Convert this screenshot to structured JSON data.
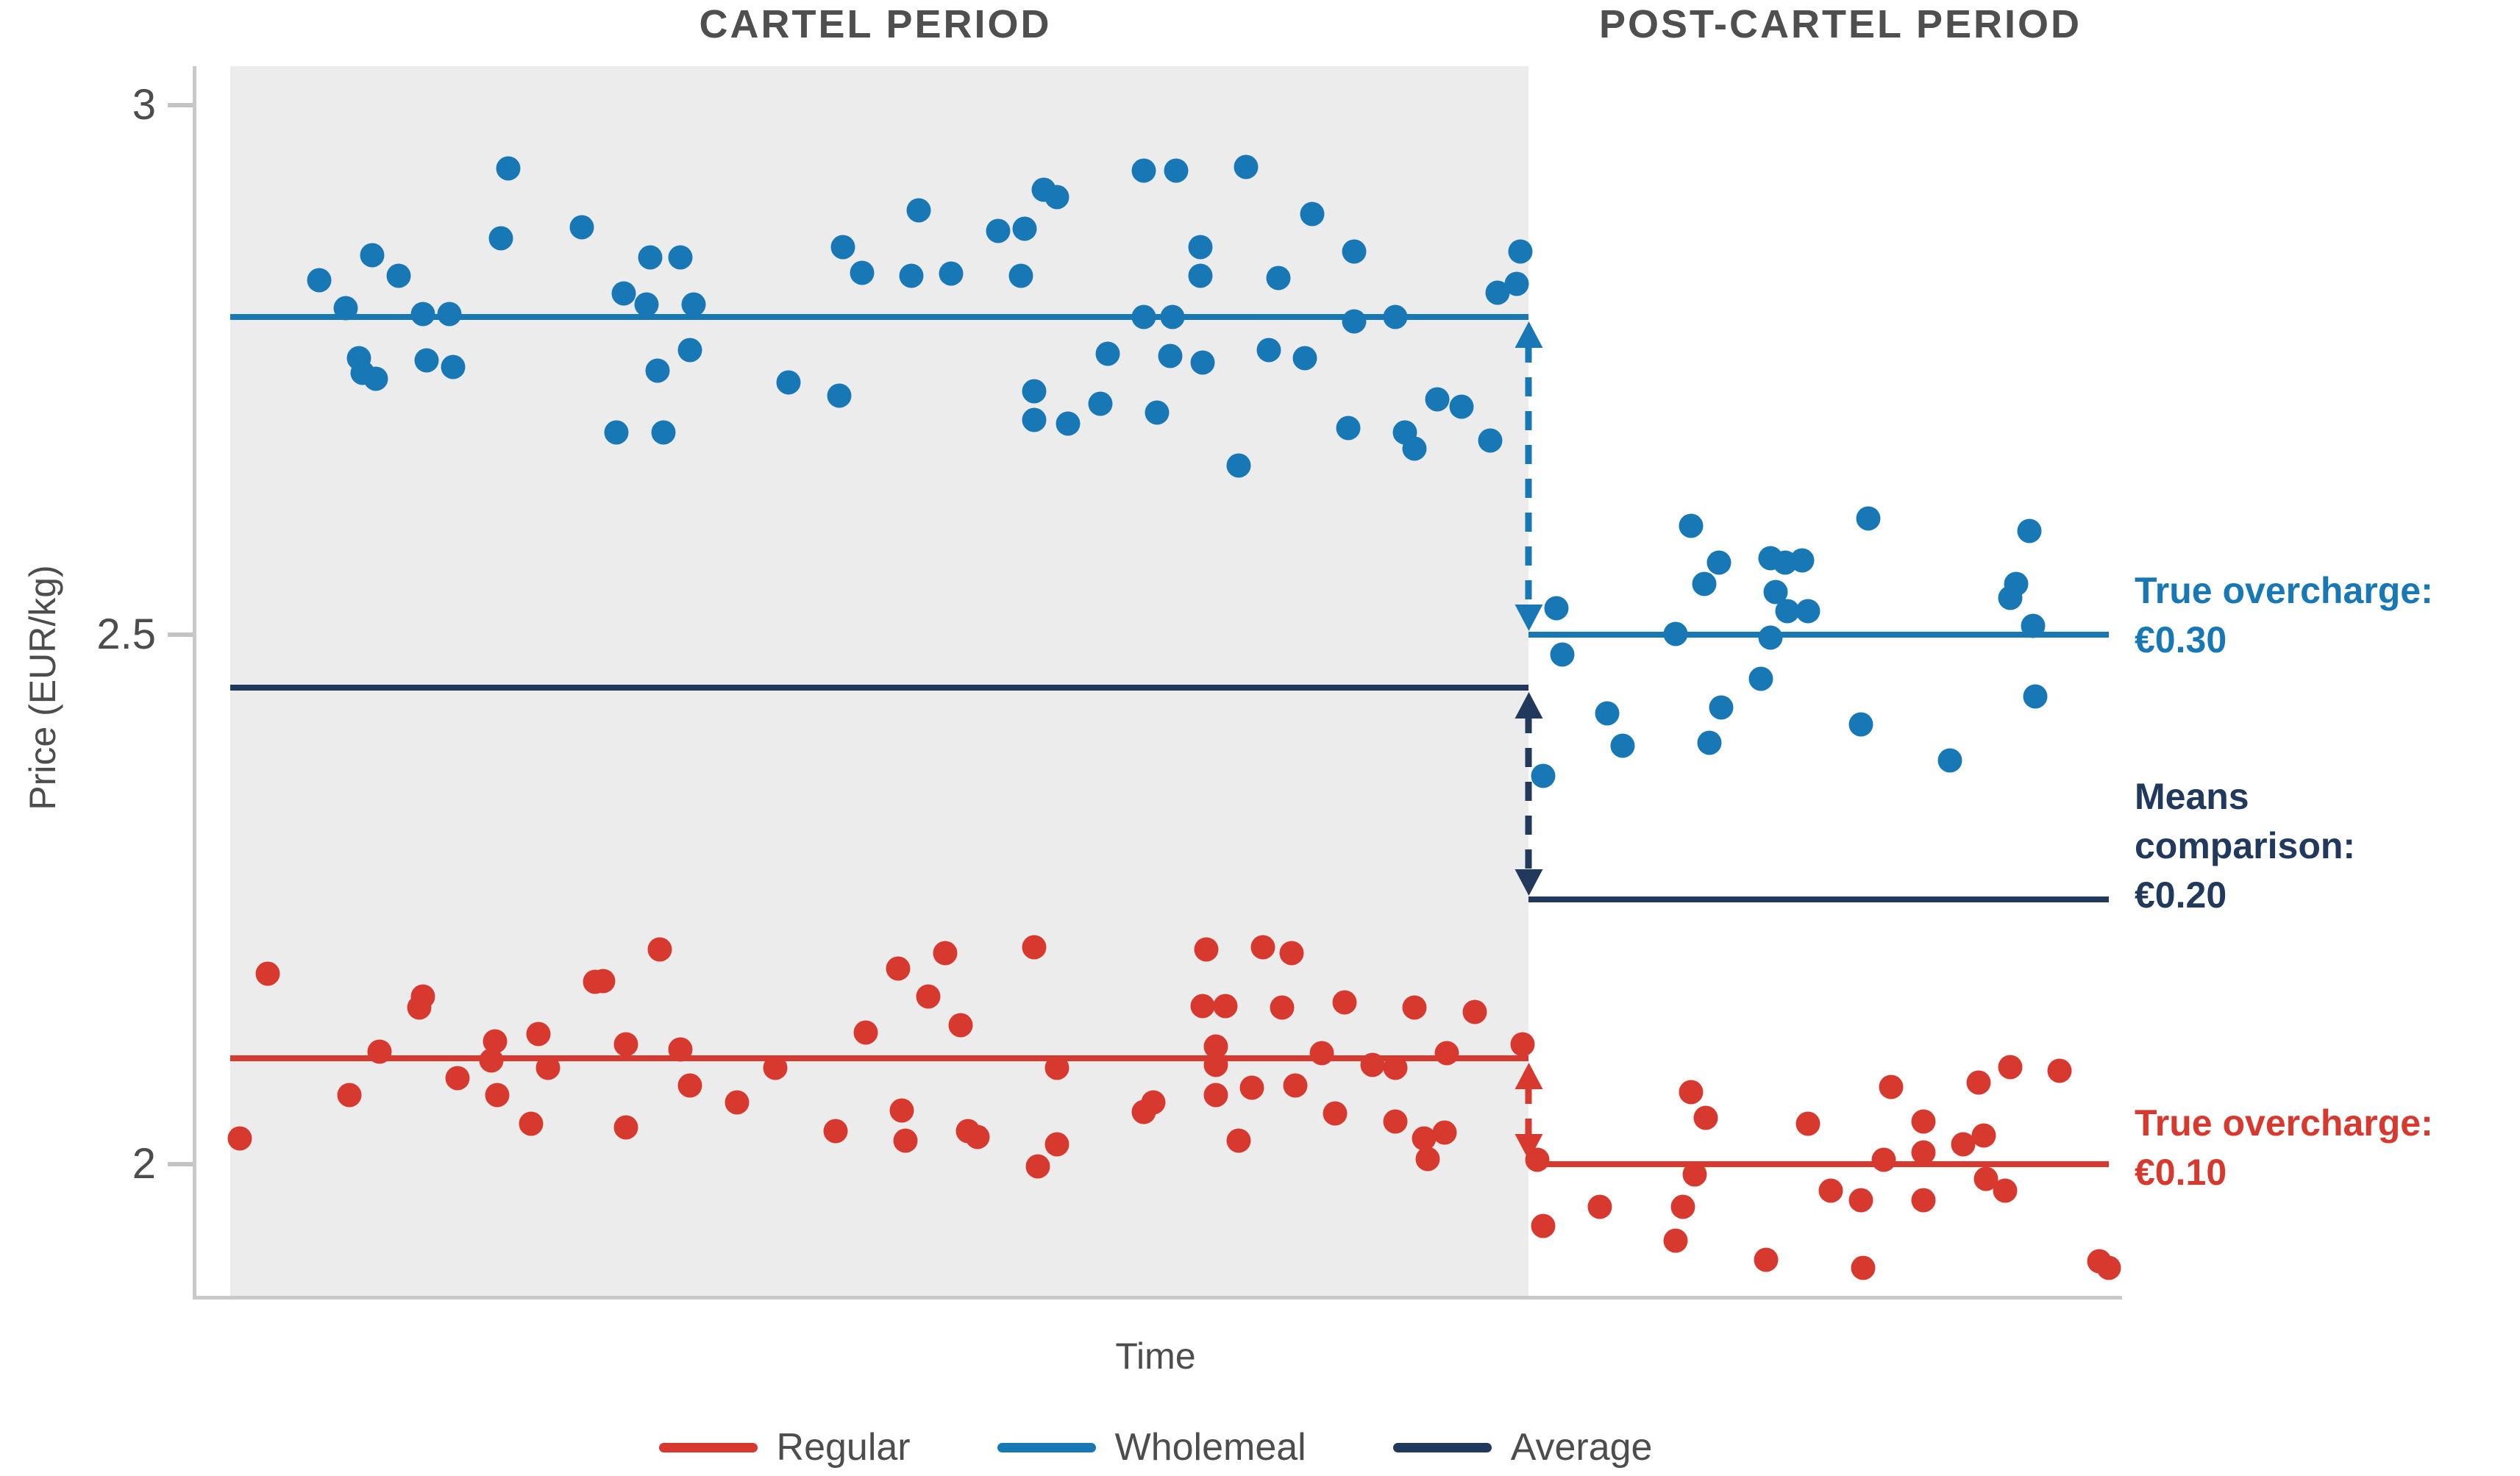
{
  "titles": {
    "cartel": "CARTEL PERIOD",
    "post": "POST-CARTEL PERIOD"
  },
  "axes": {
    "y_label": "Price (EUR/kg)",
    "x_label": "Time"
  },
  "annotations": {
    "wholemeal": {
      "line1": "True overcharge:",
      "line2": "€0.30"
    },
    "average": {
      "line1": "Means",
      "line2": "comparison:",
      "line3": "€0.20"
    },
    "regular": {
      "line1": "True overcharge:",
      "line2": "€0.10"
    }
  },
  "legend": [
    {
      "label": "Regular",
      "color": "#d8392f"
    },
    {
      "label": "Wholemeal",
      "color": "#1878b6"
    },
    {
      "label": "Average",
      "color": "#21395c"
    }
  ],
  "colors": {
    "wholemeal": "#1878b6",
    "regular": "#d8392f",
    "average": "#21395c",
    "annotation_blue": "#1778b5",
    "shade": "#ececec"
  },
  "chart_data": {
    "type": "scatter",
    "title": "Cartel vs post-cartel bread prices",
    "xlabel": "Time",
    "ylabel": "Price (EUR/kg)",
    "x_axis": {
      "unit": "percent of timeline",
      "range": [
        0,
        100
      ]
    },
    "y_axis": {
      "range": [
        1.876,
        3.037
      ],
      "ticks": [
        3,
        2.5,
        2
      ]
    },
    "grid": false,
    "legend_position": "bottom",
    "cartel_boundary_x": 68.63,
    "shaded_region": "cartel period (x 0 to 68.63)",
    "means": {
      "wholemeal": {
        "cartel": 2.8,
        "post": 2.5
      },
      "average": {
        "cartel": 2.45,
        "post": 2.25
      },
      "regular": {
        "cartel": 2.1,
        "post": 2.0
      }
    },
    "overcharges": {
      "wholemeal_true_overcharge_eur": 0.3,
      "means_comparison_eur": 0.2,
      "regular_true_overcharge_eur": 0.1
    },
    "series": [
      {
        "name": "Wholemeal",
        "color": "#1878b6",
        "points": [
          [
            14.7,
            2.94
          ],
          [
            18.6,
            2.885
          ],
          [
            14.3,
            2.874
          ],
          [
            7.5,
            2.858
          ],
          [
            8.9,
            2.839
          ],
          [
            4.7,
            2.835
          ],
          [
            22.2,
            2.856
          ],
          [
            23.8,
            2.856
          ],
          [
            20.8,
            2.822
          ],
          [
            22.0,
            2.812
          ],
          [
            24.5,
            2.812
          ],
          [
            6.1,
            2.808
          ],
          [
            10.2,
            2.803
          ],
          [
            11.6,
            2.803
          ],
          [
            32.4,
            2.866
          ],
          [
            33.4,
            2.842
          ],
          [
            6.8,
            2.761
          ],
          [
            7.0,
            2.747
          ],
          [
            7.7,
            2.742
          ],
          [
            10.4,
            2.759
          ],
          [
            11.8,
            2.753
          ],
          [
            24.3,
            2.769
          ],
          [
            22.6,
            2.749
          ],
          [
            29.5,
            2.738
          ],
          [
            32.2,
            2.726
          ],
          [
            20.4,
            2.691
          ],
          [
            22.9,
            2.691
          ],
          [
            36.4,
            2.901
          ],
          [
            43.0,
            2.92
          ],
          [
            43.7,
            2.913
          ],
          [
            40.6,
            2.881
          ],
          [
            42.0,
            2.883
          ],
          [
            48.3,
            2.938
          ],
          [
            50.0,
            2.938
          ],
          [
            53.7,
            2.942
          ],
          [
            36.0,
            2.839
          ],
          [
            38.1,
            2.841
          ],
          [
            41.8,
            2.839
          ],
          [
            51.3,
            2.866
          ],
          [
            51.3,
            2.839
          ],
          [
            55.4,
            2.837
          ],
          [
            57.2,
            2.897
          ],
          [
            59.4,
            2.862
          ],
          [
            68.2,
            2.862
          ],
          [
            68.0,
            2.831
          ],
          [
            67.0,
            2.823
          ],
          [
            48.3,
            2.8
          ],
          [
            49.8,
            2.8
          ],
          [
            59.4,
            2.796
          ],
          [
            61.6,
            2.8
          ],
          [
            46.4,
            2.765
          ],
          [
            49.7,
            2.763
          ],
          [
            51.4,
            2.757
          ],
          [
            54.9,
            2.769
          ],
          [
            56.8,
            2.761
          ],
          [
            42.5,
            2.73
          ],
          [
            46.0,
            2.718
          ],
          [
            49.0,
            2.71
          ],
          [
            42.5,
            2.703
          ],
          [
            44.3,
            2.699
          ],
          [
            59.1,
            2.695
          ],
          [
            63.8,
            2.722
          ],
          [
            65.1,
            2.715
          ],
          [
            62.1,
            2.691
          ],
          [
            62.6,
            2.676
          ],
          [
            66.6,
            2.683
          ],
          [
            53.3,
            2.66
          ],
          [
            77.2,
            2.603
          ],
          [
            86.6,
            2.61
          ],
          [
            95.1,
            2.598
          ],
          [
            78.7,
            2.568
          ],
          [
            81.4,
            2.572
          ],
          [
            82.2,
            2.568
          ],
          [
            83.1,
            2.57
          ],
          [
            77.9,
            2.548
          ],
          [
            81.7,
            2.54
          ],
          [
            94.4,
            2.548
          ],
          [
            94.1,
            2.535
          ],
          [
            70.1,
            2.525
          ],
          [
            82.3,
            2.522
          ],
          [
            83.4,
            2.522
          ],
          [
            76.4,
            2.501
          ],
          [
            81.4,
            2.497
          ],
          [
            95.3,
            2.508
          ],
          [
            70.4,
            2.481
          ],
          [
            80.9,
            2.458
          ],
          [
            72.8,
            2.426
          ],
          [
            78.8,
            2.431
          ],
          [
            95.4,
            2.442
          ],
          [
            86.2,
            2.415
          ],
          [
            73.6,
            2.395
          ],
          [
            78.2,
            2.398
          ],
          [
            90.9,
            2.381
          ],
          [
            69.4,
            2.367
          ]
        ]
      },
      {
        "name": "Regular",
        "color": "#d8392f",
        "points": [
          [
            2.0,
            2.18
          ],
          [
            10.2,
            2.158
          ],
          [
            10.0,
            2.148
          ],
          [
            19.3,
            2.172
          ],
          [
            19.7,
            2.173
          ],
          [
            22.7,
            2.203
          ],
          [
            7.9,
            2.106
          ],
          [
            14.0,
            2.116
          ],
          [
            13.8,
            2.098
          ],
          [
            16.3,
            2.123
          ],
          [
            16.8,
            2.091
          ],
          [
            20.9,
            2.113
          ],
          [
            23.8,
            2.108
          ],
          [
            33.6,
            2.124
          ],
          [
            12.0,
            2.081
          ],
          [
            14.1,
            2.065
          ],
          [
            28.8,
            2.091
          ],
          [
            6.3,
            2.065
          ],
          [
            24.3,
            2.074
          ],
          [
            26.8,
            2.058
          ],
          [
            15.9,
            2.038
          ],
          [
            20.9,
            2.035
          ],
          [
            0.5,
            2.024
          ],
          [
            32.0,
            2.031
          ],
          [
            35.3,
            2.185
          ],
          [
            37.8,
            2.199
          ],
          [
            42.5,
            2.205
          ],
          [
            36.9,
            2.158
          ],
          [
            38.6,
            2.131
          ],
          [
            51.6,
            2.203
          ],
          [
            54.6,
            2.205
          ],
          [
            56.1,
            2.199
          ],
          [
            51.4,
            2.149
          ],
          [
            52.6,
            2.149
          ],
          [
            55.6,
            2.148
          ],
          [
            58.9,
            2.153
          ],
          [
            62.6,
            2.148
          ],
          [
            65.8,
            2.144
          ],
          [
            52.1,
            2.111
          ],
          [
            52.1,
            2.094
          ],
          [
            57.7,
            2.105
          ],
          [
            60.4,
            2.094
          ],
          [
            61.6,
            2.091
          ],
          [
            64.3,
            2.105
          ],
          [
            43.7,
            2.091
          ],
          [
            68.3,
            2.113
          ],
          [
            52.1,
            2.065
          ],
          [
            54.0,
            2.072
          ],
          [
            56.3,
            2.074
          ],
          [
            48.8,
            2.058
          ],
          [
            48.3,
            2.049
          ],
          [
            53.3,
            2.022
          ],
          [
            58.4,
            2.048
          ],
          [
            61.6,
            2.04
          ],
          [
            63.1,
            2.024
          ],
          [
            64.2,
            2.03
          ],
          [
            35.5,
            2.051
          ],
          [
            35.7,
            2.022
          ],
          [
            39.0,
            2.031
          ],
          [
            39.5,
            2.026
          ],
          [
            43.7,
            2.019
          ],
          [
            42.7,
            1.998
          ],
          [
            63.3,
            2.005
          ],
          [
            77.2,
            2.068
          ],
          [
            78.0,
            2.044
          ],
          [
            83.4,
            2.038
          ],
          [
            87.8,
            2.073
          ],
          [
            89.5,
            2.04
          ],
          [
            92.4,
            2.077
          ],
          [
            94.1,
            2.092
          ],
          [
            96.7,
            2.088
          ],
          [
            91.6,
            2.019
          ],
          [
            92.7,
            2.027
          ],
          [
            89.5,
            2.011
          ],
          [
            87.4,
            2.004
          ],
          [
            69.1,
            2.004
          ],
          [
            77.4,
            1.99
          ],
          [
            92.8,
            1.986
          ],
          [
            84.6,
            1.975
          ],
          [
            86.2,
            1.966
          ],
          [
            89.5,
            1.966
          ],
          [
            72.4,
            1.96
          ],
          [
            76.8,
            1.96
          ],
          [
            93.8,
            1.975
          ],
          [
            69.4,
            1.942
          ],
          [
            76.4,
            1.928
          ],
          [
            81.2,
            1.91
          ],
          [
            86.3,
            1.902
          ],
          [
            98.8,
            1.908
          ],
          [
            99.3,
            1.902
          ]
        ]
      }
    ]
  }
}
